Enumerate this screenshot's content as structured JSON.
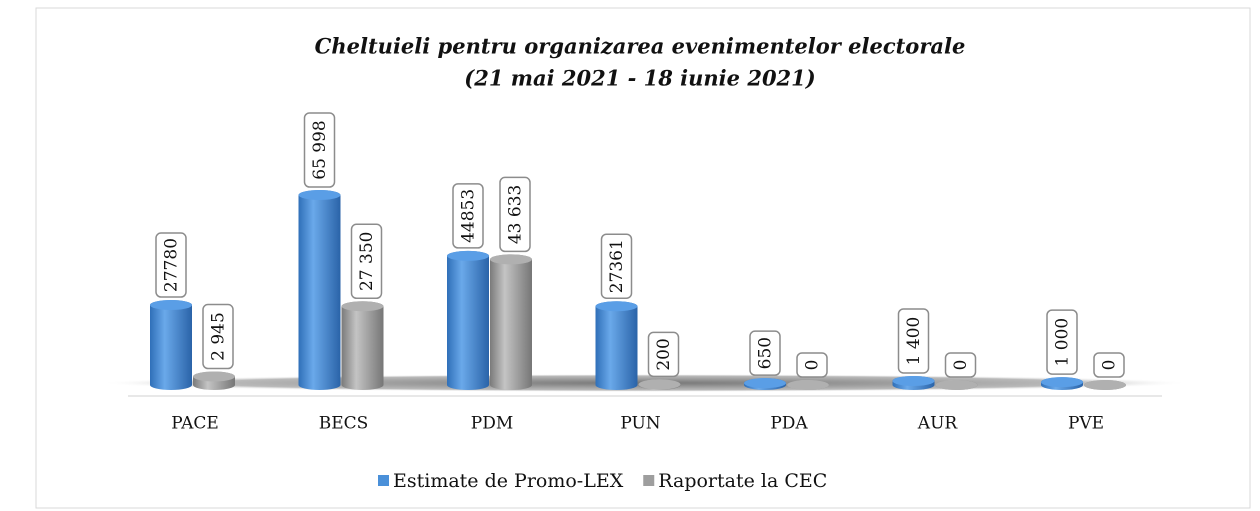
{
  "chart_data": {
    "type": "bar",
    "title": "Cheltuieli pentru organizarea evenimentelor electorale",
    "subtitle": "(21 mai 2021 - 18 iunie 2021)",
    "categories": [
      "PACE",
      "BECS",
      "PDM",
      "PUN",
      "PDA",
      "AUR",
      "PVE"
    ],
    "series": [
      {
        "name": "Estimate de Promo-LEX",
        "color": "#4a90d9",
        "values": [
          27780,
          65998,
          44853,
          27361,
          650,
          1400,
          1000
        ],
        "value_labels": [
          "27780",
          "65 998",
          "44853",
          "27361",
          "650",
          "1 400",
          "1 000"
        ]
      },
      {
        "name": "Raportate la CEC",
        "color": "#9e9e9e",
        "values": [
          2945,
          27350,
          43633,
          200,
          0,
          0,
          0
        ],
        "value_labels": [
          "2 945",
          "27 350",
          "43 633",
          "200",
          "0",
          "0",
          "0"
        ]
      }
    ],
    "legend": "bottom"
  }
}
